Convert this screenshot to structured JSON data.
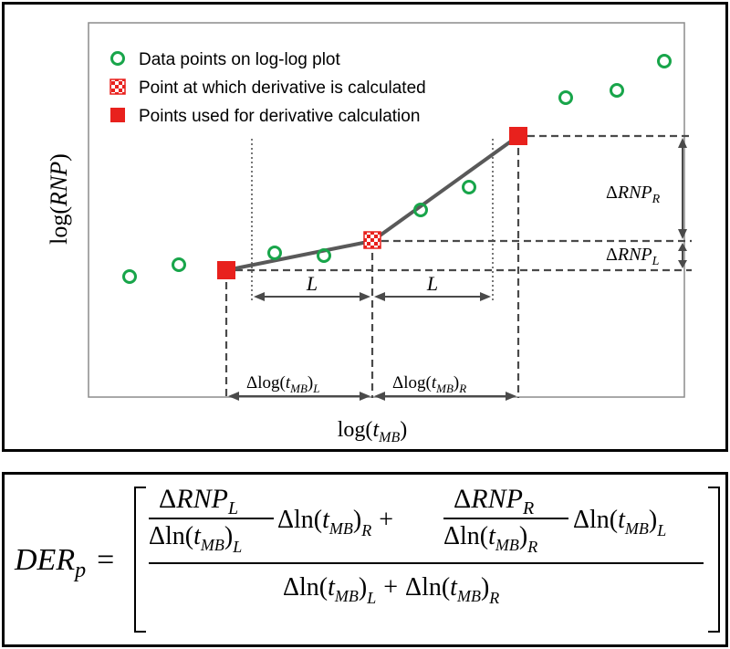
{
  "legend": {
    "data_points": "Data points on log-log plot",
    "derivative_point": "Point at which derivative is calculated",
    "used_points": "Points used for derivative calculation"
  },
  "axes": {
    "y_label_pre": "log(",
    "y_label_var": "RNP",
    "y_label_post": ")",
    "x_label_pre": "log(",
    "x_label_var": "t",
    "x_label_sub": "MB",
    "x_label_post": ")"
  },
  "annotations": {
    "L_left": "L",
    "L_right": "L",
    "delta": "Δ",
    "rnp": "RNP",
    "sub_R": "R",
    "sub_L": "L",
    "log_pre": "log(",
    "t": "t",
    "mb": "MB",
    "close": ")"
  },
  "formula": {
    "lhs_main": "DER",
    "lhs_sub": "p",
    "equals": "=",
    "delta": "Δ",
    "rnp": "RNP",
    "sub_L": "L",
    "sub_R": "R",
    "ln_pre": "ln(",
    "t": "t",
    "mb": "MB",
    "close": ")",
    "plus": "+"
  },
  "colors": {
    "green": "#18a54a",
    "red": "#e8211d",
    "line": "#595959",
    "dash": "#4a4a4a"
  },
  "icons": {
    "data_marker": "green-circle-icon",
    "derivative_marker": "red-white-checker-square-icon",
    "used_marker": "red-square-icon"
  }
}
